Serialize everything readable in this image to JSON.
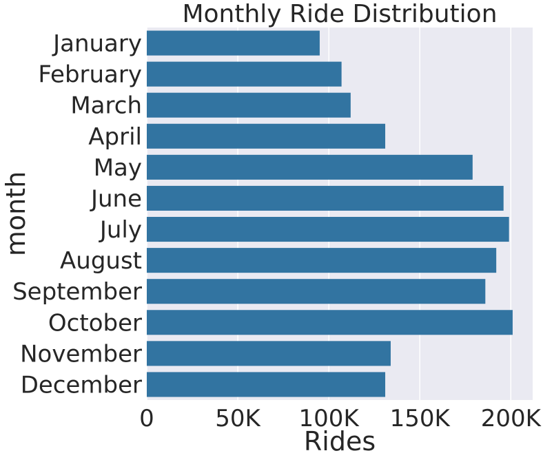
{
  "chart_data": {
    "type": "bar",
    "orientation": "horizontal",
    "title": "Monthly Ride Distribution",
    "xlabel": "Rides",
    "ylabel": "month",
    "categories": [
      "January",
      "February",
      "March",
      "April",
      "May",
      "June",
      "July",
      "August",
      "September",
      "October",
      "November",
      "December"
    ],
    "values": [
      95000,
      107000,
      112000,
      131000,
      179000,
      196000,
      199000,
      192000,
      186000,
      201000,
      134000,
      131000
    ],
    "xlim": [
      0,
      212000
    ],
    "x_ticks": [
      0,
      50000,
      100000,
      150000,
      200000
    ],
    "x_tick_labels": [
      "0",
      "50K",
      "100K",
      "150K",
      "200K"
    ],
    "grid": true,
    "colors": {
      "bar": "#3274a1",
      "plot_background": "#eaeaf2",
      "grid": "#ffffff",
      "text": "#262626"
    }
  }
}
